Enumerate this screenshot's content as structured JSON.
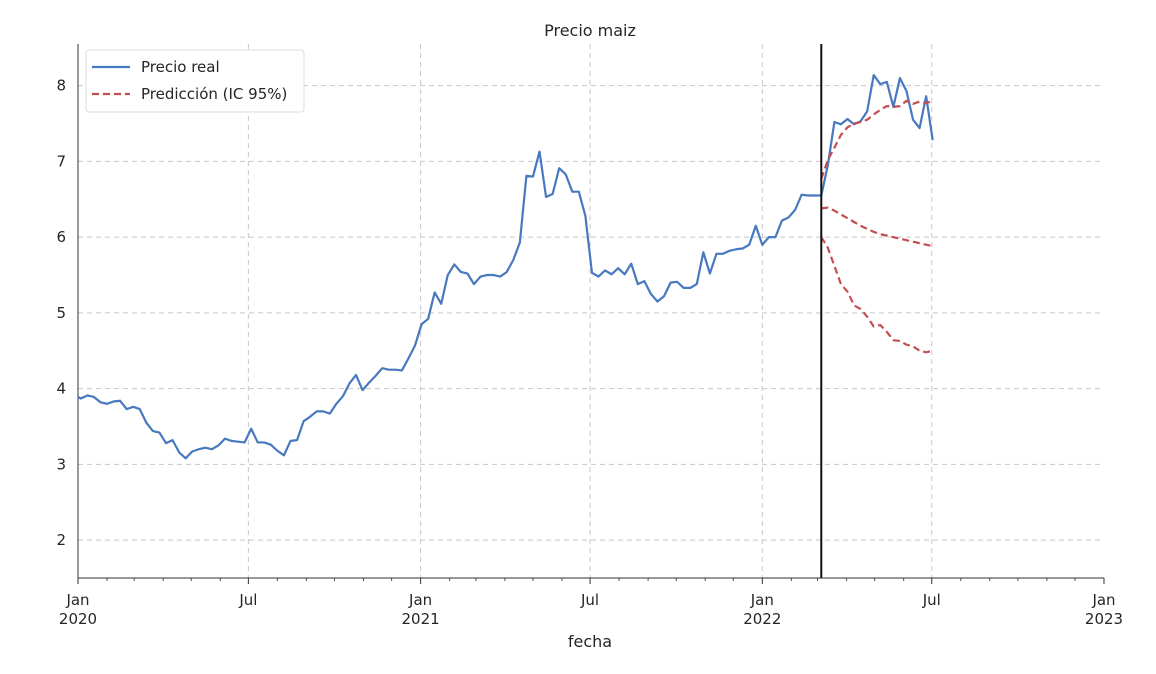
{
  "chart_data": {
    "type": "line",
    "title": "Precio maiz",
    "xlabel": "fecha",
    "ylabel": "",
    "xlim": [
      "2020-01-01",
      "2023-01-01"
    ],
    "ylim": [
      1.5,
      8.55
    ],
    "grid": true,
    "legend_position": "top-left",
    "vline_date": "2022-03-05",
    "x_major_ticks": [
      {
        "date": "2020-01-01",
        "line1": "Jan",
        "line2": "2020"
      },
      {
        "date": "2020-07-01",
        "line1": "Jul",
        "line2": ""
      },
      {
        "date": "2021-01-01",
        "line1": "Jan",
        "line2": "2021"
      },
      {
        "date": "2021-07-01",
        "line1": "Jul",
        "line2": ""
      },
      {
        "date": "2022-01-01",
        "line1": "Jan",
        "line2": "2022"
      },
      {
        "date": "2022-07-01",
        "line1": "Jul",
        "line2": ""
      },
      {
        "date": "2023-01-01",
        "line1": "Jan",
        "line2": "2023"
      }
    ],
    "y_ticks": [
      2,
      3,
      4,
      5,
      6,
      7,
      8
    ],
    "series": [
      {
        "name": "Precio real",
        "color": "#4878bf",
        "style": "solid",
        "points": [
          [
            "2020-01-01",
            3.89
          ],
          [
            "2020-01-04",
            3.87
          ],
          [
            "2020-01-11",
            3.91
          ],
          [
            "2020-01-18",
            3.89
          ],
          [
            "2020-01-25",
            3.82
          ],
          [
            "2020-02-01",
            3.8
          ],
          [
            "2020-02-08",
            3.83
          ],
          [
            "2020-02-15",
            3.84
          ],
          [
            "2020-02-22",
            3.73
          ],
          [
            "2020-02-29",
            3.76
          ],
          [
            "2020-03-07",
            3.73
          ],
          [
            "2020-03-14",
            3.55
          ],
          [
            "2020-03-21",
            3.44
          ],
          [
            "2020-03-28",
            3.42
          ],
          [
            "2020-04-04",
            3.28
          ],
          [
            "2020-04-11",
            3.32
          ],
          [
            "2020-04-18",
            3.16
          ],
          [
            "2020-04-25",
            3.08
          ],
          [
            "2020-05-02",
            3.17
          ],
          [
            "2020-05-09",
            3.2
          ],
          [
            "2020-05-16",
            3.22
          ],
          [
            "2020-05-23",
            3.2
          ],
          [
            "2020-05-30",
            3.25
          ],
          [
            "2020-06-06",
            3.34
          ],
          [
            "2020-06-13",
            3.31
          ],
          [
            "2020-06-20",
            3.3
          ],
          [
            "2020-06-27",
            3.29
          ],
          [
            "2020-07-04",
            3.47
          ],
          [
            "2020-07-11",
            3.29
          ],
          [
            "2020-07-18",
            3.29
          ],
          [
            "2020-07-25",
            3.26
          ],
          [
            "2020-08-01",
            3.18
          ],
          [
            "2020-08-08",
            3.12
          ],
          [
            "2020-08-15",
            3.31
          ],
          [
            "2020-08-22",
            3.32
          ],
          [
            "2020-08-29",
            3.57
          ],
          [
            "2020-09-05",
            3.63
          ],
          [
            "2020-09-12",
            3.7
          ],
          [
            "2020-09-19",
            3.7
          ],
          [
            "2020-09-26",
            3.67
          ],
          [
            "2020-10-03",
            3.8
          ],
          [
            "2020-10-10",
            3.9
          ],
          [
            "2020-10-17",
            4.07
          ],
          [
            "2020-10-24",
            4.18
          ],
          [
            "2020-10-31",
            3.98
          ],
          [
            "2020-11-07",
            4.08
          ],
          [
            "2020-11-14",
            4.17
          ],
          [
            "2020-11-21",
            4.27
          ],
          [
            "2020-11-28",
            4.25
          ],
          [
            "2020-12-05",
            4.25
          ],
          [
            "2020-12-12",
            4.24
          ],
          [
            "2020-12-19",
            4.4
          ],
          [
            "2020-12-26",
            4.57
          ],
          [
            "2021-01-02",
            4.85
          ],
          [
            "2021-01-09",
            4.92
          ],
          [
            "2021-01-16",
            5.27
          ],
          [
            "2021-01-23",
            5.12
          ],
          [
            "2021-01-30",
            5.5
          ],
          [
            "2021-02-06",
            5.64
          ],
          [
            "2021-02-13",
            5.54
          ],
          [
            "2021-02-20",
            5.52
          ],
          [
            "2021-02-27",
            5.38
          ],
          [
            "2021-03-06",
            5.48
          ],
          [
            "2021-03-13",
            5.5
          ],
          [
            "2021-03-20",
            5.5
          ],
          [
            "2021-03-27",
            5.48
          ],
          [
            "2021-04-03",
            5.54
          ],
          [
            "2021-04-10",
            5.7
          ],
          [
            "2021-04-17",
            5.93
          ],
          [
            "2021-04-24",
            6.81
          ],
          [
            "2021-05-01",
            6.8
          ],
          [
            "2021-05-08",
            7.13
          ],
          [
            "2021-05-15",
            6.53
          ],
          [
            "2021-05-22",
            6.57
          ],
          [
            "2021-05-29",
            6.91
          ],
          [
            "2021-06-05",
            6.83
          ],
          [
            "2021-06-12",
            6.6
          ],
          [
            "2021-06-19",
            6.6
          ],
          [
            "2021-06-26",
            6.28
          ],
          [
            "2021-07-03",
            5.53
          ],
          [
            "2021-07-10",
            5.48
          ],
          [
            "2021-07-17",
            5.56
          ],
          [
            "2021-07-24",
            5.51
          ],
          [
            "2021-07-31",
            5.59
          ],
          [
            "2021-08-07",
            5.51
          ],
          [
            "2021-08-14",
            5.65
          ],
          [
            "2021-08-21",
            5.38
          ],
          [
            "2021-08-28",
            5.42
          ],
          [
            "2021-09-04",
            5.25
          ],
          [
            "2021-09-11",
            5.15
          ],
          [
            "2021-09-18",
            5.22
          ],
          [
            "2021-09-25",
            5.4
          ],
          [
            "2021-10-02",
            5.41
          ],
          [
            "2021-10-09",
            5.33
          ],
          [
            "2021-10-16",
            5.33
          ],
          [
            "2021-10-23",
            5.38
          ],
          [
            "2021-10-30",
            5.8
          ],
          [
            "2021-11-06",
            5.52
          ],
          [
            "2021-11-13",
            5.78
          ],
          [
            "2021-11-20",
            5.78
          ],
          [
            "2021-11-27",
            5.82
          ],
          [
            "2021-12-04",
            5.84
          ],
          [
            "2021-12-11",
            5.85
          ],
          [
            "2021-12-18",
            5.9
          ],
          [
            "2021-12-25",
            6.15
          ],
          [
            "2022-01-01",
            5.9
          ],
          [
            "2022-01-08",
            6.0
          ],
          [
            "2022-01-15",
            6.0
          ],
          [
            "2022-01-22",
            6.22
          ],
          [
            "2022-01-29",
            6.26
          ],
          [
            "2022-02-05",
            6.36
          ],
          [
            "2022-02-12",
            6.56
          ],
          [
            "2022-02-19",
            6.55
          ],
          [
            "2022-02-26",
            6.55
          ],
          [
            "2022-03-05",
            6.55
          ],
          [
            "2022-03-12",
            6.95
          ],
          [
            "2022-03-19",
            7.52
          ],
          [
            "2022-03-26",
            7.49
          ],
          [
            "2022-04-02",
            7.56
          ],
          [
            "2022-04-09",
            7.49
          ],
          [
            "2022-04-16",
            7.53
          ],
          [
            "2022-04-23",
            7.66
          ],
          [
            "2022-04-30",
            8.14
          ],
          [
            "2022-05-07",
            8.02
          ],
          [
            "2022-05-14",
            8.05
          ],
          [
            "2022-05-21",
            7.72
          ],
          [
            "2022-05-28",
            8.1
          ],
          [
            "2022-06-04",
            7.93
          ],
          [
            "2022-06-11",
            7.55
          ],
          [
            "2022-06-18",
            7.44
          ],
          [
            "2022-06-25",
            7.86
          ],
          [
            "2022-07-02",
            7.28
          ]
        ]
      },
      {
        "name": "Predicción (IC 95%)",
        "color": "#c44e52",
        "style": "dashed",
        "points": [
          [
            "2022-03-05",
            6.38
          ],
          [
            "2022-03-12",
            6.39
          ],
          [
            "2022-03-19",
            6.35
          ],
          [
            "2022-03-26",
            6.3
          ],
          [
            "2022-04-02",
            6.25
          ],
          [
            "2022-04-09",
            6.2
          ],
          [
            "2022-04-16",
            6.15
          ],
          [
            "2022-04-23",
            6.11
          ],
          [
            "2022-04-30",
            6.07
          ],
          [
            "2022-05-07",
            6.04
          ],
          [
            "2022-05-14",
            6.02
          ],
          [
            "2022-05-21",
            6.0
          ],
          [
            "2022-05-28",
            5.98
          ],
          [
            "2022-06-04",
            5.96
          ],
          [
            "2022-06-11",
            5.94
          ],
          [
            "2022-06-18",
            5.92
          ],
          [
            "2022-06-25",
            5.9
          ],
          [
            "2022-07-02",
            5.88
          ]
        ]
      },
      {
        "name": "",
        "color": "#c44e52",
        "style": "dashed",
        "points": [
          [
            "2022-03-05",
            6.77
          ],
          [
            "2022-03-12",
            7.02
          ],
          [
            "2022-03-19",
            7.18
          ],
          [
            "2022-03-26",
            7.35
          ],
          [
            "2022-04-02",
            7.45
          ],
          [
            "2022-04-09",
            7.5
          ],
          [
            "2022-04-16",
            7.52
          ],
          [
            "2022-04-23",
            7.55
          ],
          [
            "2022-04-30",
            7.62
          ],
          [
            "2022-05-07",
            7.68
          ],
          [
            "2022-05-14",
            7.73
          ],
          [
            "2022-05-21",
            7.72
          ],
          [
            "2022-05-28",
            7.73
          ],
          [
            "2022-06-04",
            7.8
          ],
          [
            "2022-06-11",
            7.76
          ],
          [
            "2022-06-18",
            7.79
          ],
          [
            "2022-06-25",
            7.77
          ],
          [
            "2022-07-02",
            7.8
          ]
        ]
      },
      {
        "name": "",
        "color": "#c44e52",
        "style": "dashed",
        "points": [
          [
            "2022-03-05",
            6.0
          ],
          [
            "2022-03-12",
            5.86
          ],
          [
            "2022-03-19",
            5.62
          ],
          [
            "2022-03-26",
            5.38
          ],
          [
            "2022-04-02",
            5.28
          ],
          [
            "2022-04-09",
            5.1
          ],
          [
            "2022-04-16",
            5.05
          ],
          [
            "2022-04-23",
            4.95
          ],
          [
            "2022-04-30",
            4.82
          ],
          [
            "2022-05-07",
            4.84
          ],
          [
            "2022-05-14",
            4.75
          ],
          [
            "2022-05-21",
            4.64
          ],
          [
            "2022-05-28",
            4.63
          ],
          [
            "2022-06-04",
            4.58
          ],
          [
            "2022-06-11",
            4.56
          ],
          [
            "2022-06-18",
            4.5
          ],
          [
            "2022-06-25",
            4.48
          ],
          [
            "2022-07-02",
            4.5
          ]
        ]
      }
    ]
  }
}
